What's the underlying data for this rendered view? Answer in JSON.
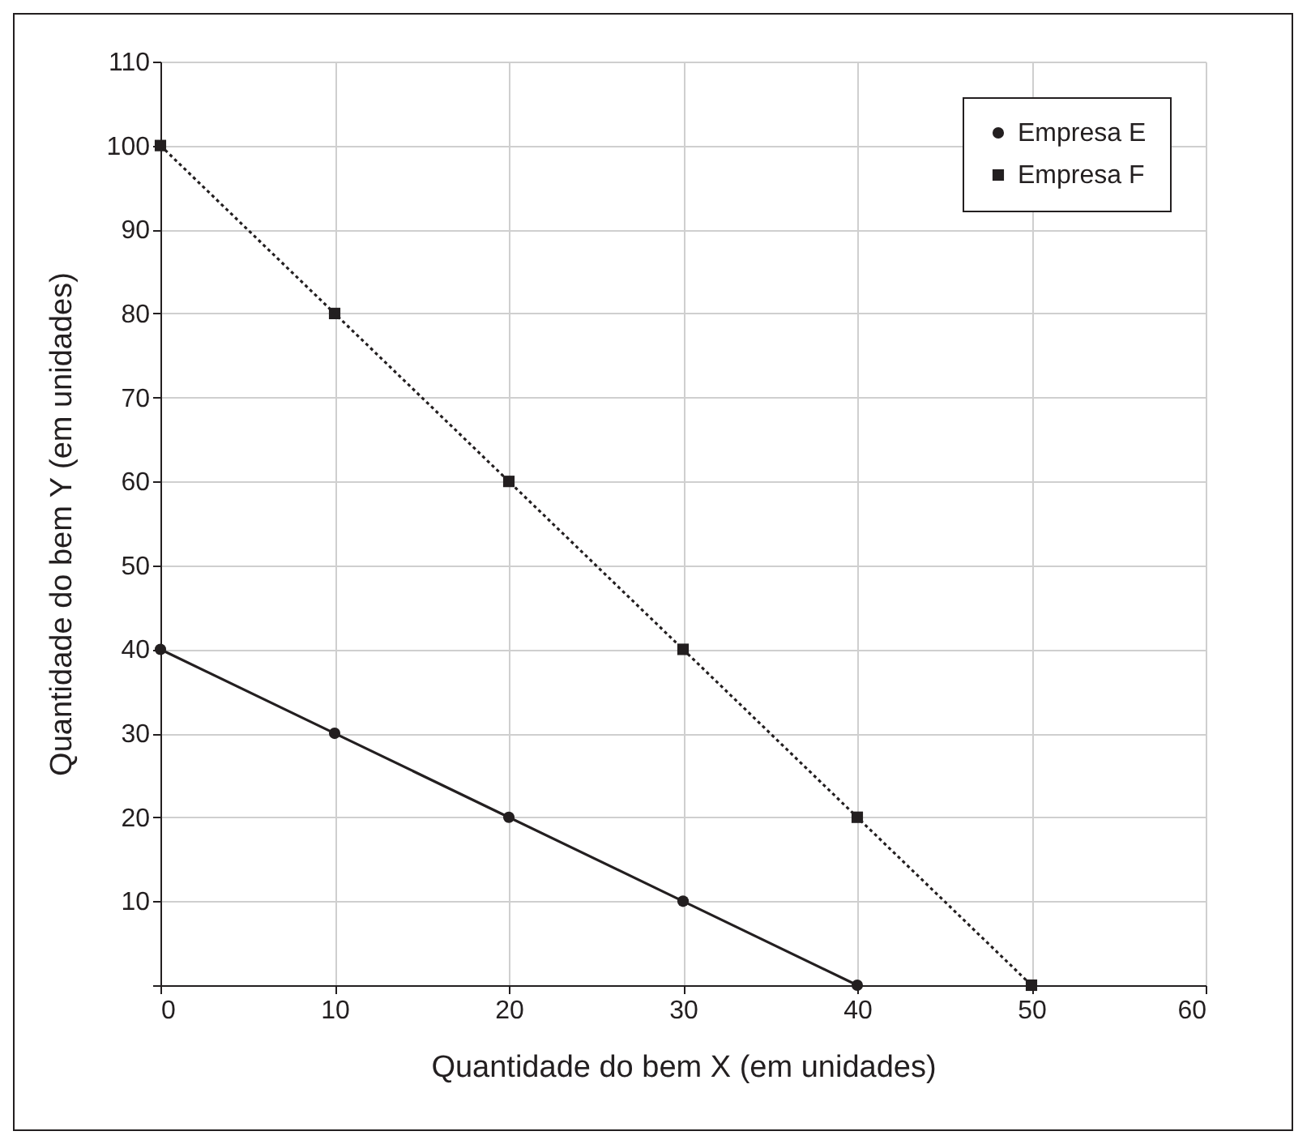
{
  "chart_data": {
    "type": "line",
    "xlabel": "Quantidade do bem X (em unidades)",
    "ylabel": "Quantidade do bem Y (em unidades)",
    "series": [
      {
        "name": "Empresa E",
        "color": "#231f20",
        "marker": "circle",
        "line_style": "solid",
        "x": [
          0,
          10,
          20,
          30,
          40
        ],
        "values": [
          40,
          30,
          20,
          10,
          0
        ]
      },
      {
        "name": "Empresa F",
        "color": "#231f20",
        "marker": "square",
        "line_style": "dotted",
        "x": [
          0,
          10,
          20,
          30,
          40,
          50
        ],
        "values": [
          100,
          80,
          60,
          40,
          20,
          0
        ]
      }
    ],
    "xlim": [
      0,
      60
    ],
    "xticks": [
      0,
      10,
      20,
      30,
      40,
      50,
      60
    ],
    "ylim": [
      0,
      110
    ],
    "yticks": [
      {
        "value": 0,
        "label": null
      },
      10,
      20,
      30,
      40,
      50,
      60,
      70,
      80,
      90,
      100,
      110
    ],
    "grid": true,
    "legend": "top right"
  }
}
